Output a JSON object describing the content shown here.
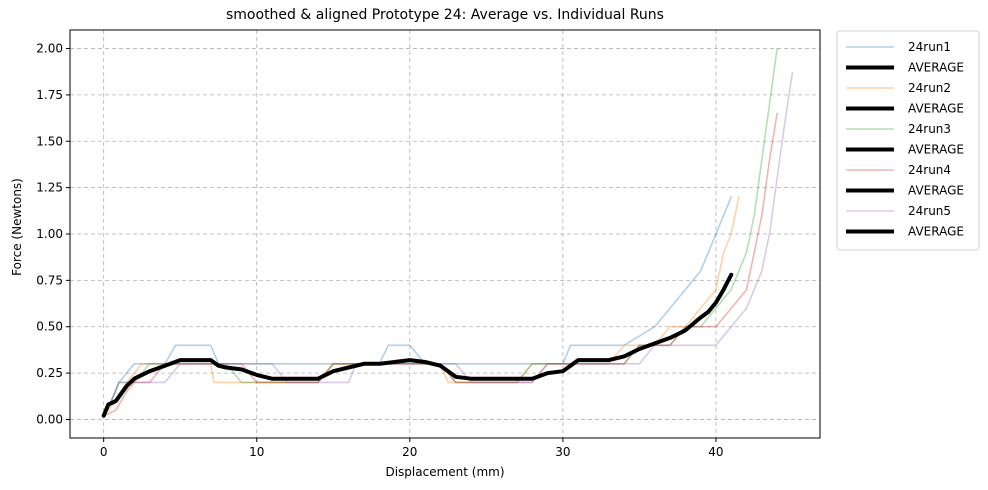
{
  "chart_data": {
    "type": "line",
    "title": "smoothed & aligned Prototype 24: Average vs. Individual Runs",
    "xlabel": "Displacement (mm)",
    "ylabel": "Force (Newtons)",
    "xlim": [
      -2.2,
      46.8
    ],
    "ylim": [
      -0.1,
      2.1
    ],
    "xticks": [
      0,
      10,
      20,
      30,
      40
    ],
    "yticks": [
      0.0,
      0.25,
      0.5,
      0.75,
      1.0,
      1.25,
      1.5,
      1.75,
      2.0
    ],
    "xtick_labels": [
      "0",
      "10",
      "20",
      "30",
      "40"
    ],
    "ytick_labels": [
      "0.00",
      "0.25",
      "0.50",
      "0.75",
      "1.00",
      "1.25",
      "1.50",
      "1.75",
      "2.00"
    ],
    "grid": true,
    "legend_position": "outside-right",
    "series": [
      {
        "name": "24run1",
        "color": "#1f77b4",
        "style": "thin",
        "opacity": 0.35,
        "x": [
          0,
          0.2,
          0.5,
          1,
          1.5,
          2,
          3,
          4,
          4.7,
          5,
          6,
          7,
          7.5,
          8,
          9,
          10,
          11,
          12,
          13,
          14,
          15,
          16,
          17,
          18,
          18.6,
          19,
          20,
          20.5,
          21,
          22,
          23,
          24,
          25,
          26,
          27,
          28,
          29,
          30,
          30.5,
          31,
          32,
          33,
          34,
          35,
          36,
          37,
          38,
          39,
          39.5,
          40,
          40.5,
          41
        ],
        "y": [
          0.02,
          0.05,
          0.1,
          0.2,
          0.25,
          0.3,
          0.3,
          0.3,
          0.4,
          0.4,
          0.4,
          0.4,
          0.3,
          0.3,
          0.3,
          0.3,
          0.3,
          0.3,
          0.3,
          0.3,
          0.3,
          0.3,
          0.3,
          0.3,
          0.4,
          0.4,
          0.4,
          0.35,
          0.3,
          0.3,
          0.3,
          0.3,
          0.3,
          0.3,
          0.3,
          0.3,
          0.3,
          0.3,
          0.4,
          0.4,
          0.4,
          0.4,
          0.4,
          0.45,
          0.5,
          0.6,
          0.7,
          0.8,
          0.9,
          1.0,
          1.1,
          1.2
        ]
      },
      {
        "name": "AVERAGE",
        "color": "#000000",
        "style": "thick",
        "opacity": 1,
        "x": [
          0,
          0.3,
          0.8,
          1.5,
          2,
          3,
          4,
          5,
          6,
          7,
          7.5,
          8,
          9,
          10,
          11,
          12,
          13,
          14,
          15,
          16,
          17,
          18,
          19,
          20,
          21,
          22,
          23,
          24,
          25,
          26,
          27,
          28,
          29,
          30,
          31,
          32,
          33,
          34,
          35,
          36,
          37,
          38,
          39,
          39.5,
          40,
          40.5,
          41
        ],
        "y": [
          0.02,
          0.08,
          0.1,
          0.18,
          0.22,
          0.26,
          0.29,
          0.32,
          0.32,
          0.32,
          0.29,
          0.28,
          0.27,
          0.24,
          0.22,
          0.22,
          0.22,
          0.22,
          0.26,
          0.28,
          0.3,
          0.3,
          0.31,
          0.32,
          0.31,
          0.29,
          0.23,
          0.22,
          0.22,
          0.22,
          0.22,
          0.22,
          0.25,
          0.26,
          0.32,
          0.32,
          0.32,
          0.34,
          0.38,
          0.41,
          0.44,
          0.48,
          0.55,
          0.58,
          0.63,
          0.7,
          0.78
        ]
      },
      {
        "name": "24run2",
        "color": "#ff7f0e",
        "style": "thin",
        "opacity": 0.35,
        "x": [
          0,
          0.3,
          0.8,
          1.5,
          2.5,
          3.5,
          5,
          6,
          7,
          7.2,
          8,
          9,
          10,
          11,
          12,
          13,
          14,
          15,
          16,
          17,
          18,
          19,
          20,
          21,
          22,
          22.5,
          23,
          24,
          25,
          26,
          27,
          28,
          29,
          30,
          31,
          32,
          33,
          34,
          35,
          36,
          37,
          38,
          39,
          40,
          40.5,
          41,
          41.5
        ],
        "y": [
          0.02,
          0.05,
          0.1,
          0.2,
          0.3,
          0.3,
          0.3,
          0.3,
          0.3,
          0.2,
          0.2,
          0.2,
          0.2,
          0.2,
          0.2,
          0.2,
          0.2,
          0.3,
          0.3,
          0.3,
          0.3,
          0.3,
          0.3,
          0.3,
          0.3,
          0.2,
          0.2,
          0.2,
          0.2,
          0.2,
          0.2,
          0.3,
          0.3,
          0.3,
          0.3,
          0.3,
          0.3,
          0.4,
          0.4,
          0.4,
          0.5,
          0.5,
          0.6,
          0.7,
          0.9,
          1.0,
          1.2
        ]
      },
      {
        "name": "AVERAGE",
        "color": "#000000",
        "style": "thick",
        "opacity": 1,
        "x": [
          0,
          0.3,
          0.8,
          1.5,
          2,
          3,
          4,
          5,
          6,
          7,
          7.5,
          8,
          9,
          10,
          11,
          12,
          13,
          14,
          15,
          16,
          17,
          18,
          19,
          20,
          21,
          22,
          23,
          24,
          25,
          26,
          27,
          28,
          29,
          30,
          31,
          32,
          33,
          34,
          35,
          36,
          37,
          38,
          39,
          39.5,
          40,
          40.5,
          41
        ],
        "y": [
          0.02,
          0.08,
          0.1,
          0.18,
          0.22,
          0.26,
          0.29,
          0.32,
          0.32,
          0.32,
          0.29,
          0.28,
          0.27,
          0.24,
          0.22,
          0.22,
          0.22,
          0.22,
          0.26,
          0.28,
          0.3,
          0.3,
          0.31,
          0.32,
          0.31,
          0.29,
          0.23,
          0.22,
          0.22,
          0.22,
          0.22,
          0.22,
          0.25,
          0.26,
          0.32,
          0.32,
          0.32,
          0.34,
          0.38,
          0.41,
          0.44,
          0.48,
          0.55,
          0.58,
          0.63,
          0.7,
          0.78
        ]
      },
      {
        "name": "24run3",
        "color": "#2ca02c",
        "style": "thin",
        "opacity": 0.35,
        "x": [
          0,
          0.5,
          1,
          2,
          3,
          4,
          5,
          6,
          7,
          8,
          9,
          10,
          11,
          12,
          13,
          14,
          15,
          16,
          17,
          18,
          19,
          20,
          21,
          22,
          23,
          24,
          25,
          26,
          27,
          28,
          29,
          30,
          31,
          32,
          33,
          34,
          35,
          36,
          37,
          38,
          39,
          40,
          41,
          42,
          42.5,
          43,
          43.5,
          44
        ],
        "y": [
          0.02,
          0.1,
          0.2,
          0.2,
          0.3,
          0.3,
          0.3,
          0.3,
          0.3,
          0.3,
          0.2,
          0.2,
          0.2,
          0.2,
          0.2,
          0.2,
          0.3,
          0.3,
          0.3,
          0.3,
          0.3,
          0.3,
          0.3,
          0.3,
          0.2,
          0.2,
          0.2,
          0.2,
          0.2,
          0.3,
          0.3,
          0.3,
          0.3,
          0.3,
          0.3,
          0.3,
          0.4,
          0.4,
          0.4,
          0.5,
          0.5,
          0.6,
          0.7,
          0.9,
          1.1,
          1.4,
          1.7,
          2.0
        ]
      },
      {
        "name": "AVERAGE",
        "color": "#000000",
        "style": "thick",
        "opacity": 1,
        "x": [
          0,
          0.3,
          0.8,
          1.5,
          2,
          3,
          4,
          5,
          6,
          7,
          7.5,
          8,
          9,
          10,
          11,
          12,
          13,
          14,
          15,
          16,
          17,
          18,
          19,
          20,
          21,
          22,
          23,
          24,
          25,
          26,
          27,
          28,
          29,
          30,
          31,
          32,
          33,
          34,
          35,
          36,
          37,
          38,
          39,
          39.5,
          40,
          40.5,
          41
        ],
        "y": [
          0.02,
          0.08,
          0.1,
          0.18,
          0.22,
          0.26,
          0.29,
          0.32,
          0.32,
          0.32,
          0.29,
          0.28,
          0.27,
          0.24,
          0.22,
          0.22,
          0.22,
          0.22,
          0.26,
          0.28,
          0.3,
          0.3,
          0.31,
          0.32,
          0.31,
          0.29,
          0.23,
          0.22,
          0.22,
          0.22,
          0.22,
          0.22,
          0.25,
          0.26,
          0.32,
          0.32,
          0.32,
          0.34,
          0.38,
          0.41,
          0.44,
          0.48,
          0.55,
          0.58,
          0.63,
          0.7,
          0.78
        ]
      },
      {
        "name": "24run4",
        "color": "#d62728",
        "style": "thin",
        "opacity": 0.35,
        "x": [
          0,
          0.3,
          0.8,
          1.5,
          2,
          3,
          4,
          5,
          6,
          7,
          8,
          9,
          10,
          11,
          12,
          13,
          14,
          15,
          16,
          17,
          18,
          19,
          20,
          21,
          22,
          23,
          24,
          25,
          26,
          27,
          28,
          29,
          30,
          31,
          32,
          33,
          34,
          35,
          36,
          37,
          38,
          39,
          40,
          41,
          42,
          42.5,
          43,
          43.5,
          44
        ],
        "y": [
          0.02,
          0.03,
          0.05,
          0.15,
          0.2,
          0.2,
          0.3,
          0.3,
          0.3,
          0.3,
          0.3,
          0.3,
          0.2,
          0.2,
          0.2,
          0.2,
          0.2,
          0.3,
          0.3,
          0.3,
          0.3,
          0.3,
          0.3,
          0.3,
          0.3,
          0.2,
          0.2,
          0.2,
          0.2,
          0.2,
          0.2,
          0.3,
          0.3,
          0.3,
          0.3,
          0.3,
          0.3,
          0.4,
          0.4,
          0.4,
          0.5,
          0.5,
          0.5,
          0.6,
          0.7,
          0.9,
          1.1,
          1.4,
          1.65
        ]
      },
      {
        "name": "AVERAGE",
        "color": "#000000",
        "style": "thick",
        "opacity": 1,
        "x": [
          0,
          0.3,
          0.8,
          1.5,
          2,
          3,
          4,
          5,
          6,
          7,
          7.5,
          8,
          9,
          10,
          11,
          12,
          13,
          14,
          15,
          16,
          17,
          18,
          19,
          20,
          21,
          22,
          23,
          24,
          25,
          26,
          27,
          28,
          29,
          30,
          31,
          32,
          33,
          34,
          35,
          36,
          37,
          38,
          39,
          39.5,
          40,
          40.5,
          41
        ],
        "y": [
          0.02,
          0.08,
          0.1,
          0.18,
          0.22,
          0.26,
          0.29,
          0.32,
          0.32,
          0.32,
          0.29,
          0.28,
          0.27,
          0.24,
          0.22,
          0.22,
          0.22,
          0.22,
          0.26,
          0.28,
          0.3,
          0.3,
          0.31,
          0.32,
          0.31,
          0.29,
          0.23,
          0.22,
          0.22,
          0.22,
          0.22,
          0.22,
          0.25,
          0.26,
          0.32,
          0.32,
          0.32,
          0.34,
          0.38,
          0.41,
          0.44,
          0.48,
          0.55,
          0.58,
          0.63,
          0.7,
          0.78
        ]
      },
      {
        "name": "24run5",
        "color": "#9467bd",
        "style": "thin",
        "opacity": 0.35,
        "x": [
          0,
          0.5,
          1,
          2,
          3,
          4,
          5,
          6,
          7,
          8,
          9,
          10,
          11,
          12,
          13,
          14,
          15,
          16,
          16.5,
          17,
          18,
          19,
          20,
          21,
          22,
          23,
          24,
          25,
          26,
          27,
          28,
          29,
          30,
          31,
          32,
          33,
          34,
          35,
          36,
          37,
          38,
          39,
          40,
          41,
          42,
          43,
          43.5,
          44,
          44.5,
          45
        ],
        "y": [
          0.02,
          0.1,
          0.2,
          0.2,
          0.2,
          0.2,
          0.3,
          0.3,
          0.3,
          0.3,
          0.3,
          0.3,
          0.3,
          0.2,
          0.2,
          0.2,
          0.2,
          0.2,
          0.3,
          0.3,
          0.3,
          0.3,
          0.3,
          0.3,
          0.3,
          0.3,
          0.2,
          0.2,
          0.2,
          0.2,
          0.2,
          0.3,
          0.3,
          0.3,
          0.3,
          0.3,
          0.3,
          0.3,
          0.4,
          0.4,
          0.4,
          0.4,
          0.4,
          0.5,
          0.6,
          0.8,
          1.0,
          1.3,
          1.6,
          1.87
        ]
      },
      {
        "name": "AVERAGE",
        "color": "#000000",
        "style": "thick",
        "opacity": 1,
        "x": [
          0,
          0.3,
          0.8,
          1.5,
          2,
          3,
          4,
          5,
          6,
          7,
          7.5,
          8,
          9,
          10,
          11,
          12,
          13,
          14,
          15,
          16,
          17,
          18,
          19,
          20,
          21,
          22,
          23,
          24,
          25,
          26,
          27,
          28,
          29,
          30,
          31,
          32,
          33,
          34,
          35,
          36,
          37,
          38,
          39,
          39.5,
          40,
          40.5,
          41
        ],
        "y": [
          0.02,
          0.08,
          0.1,
          0.18,
          0.22,
          0.26,
          0.29,
          0.32,
          0.32,
          0.32,
          0.29,
          0.28,
          0.27,
          0.24,
          0.22,
          0.22,
          0.22,
          0.22,
          0.26,
          0.28,
          0.3,
          0.3,
          0.31,
          0.32,
          0.31,
          0.29,
          0.23,
          0.22,
          0.22,
          0.22,
          0.22,
          0.22,
          0.25,
          0.26,
          0.32,
          0.32,
          0.32,
          0.34,
          0.38,
          0.41,
          0.44,
          0.48,
          0.55,
          0.58,
          0.63,
          0.7,
          0.78
        ]
      }
    ]
  }
}
